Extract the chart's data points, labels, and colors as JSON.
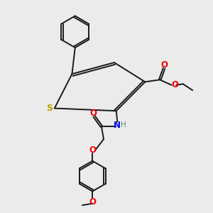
{
  "bg_color": "#ebebeb",
  "bond_color": "#1a1a1a",
  "S_color": "#b8a000",
  "N_color": "#0000ee",
  "O_color": "#ee0000",
  "H_color": "#558888",
  "figsize": [
    3.0,
    3.0
  ],
  "dpi": 100,
  "xlim": [
    0,
    10
  ],
  "ylim": [
    0,
    10
  ]
}
